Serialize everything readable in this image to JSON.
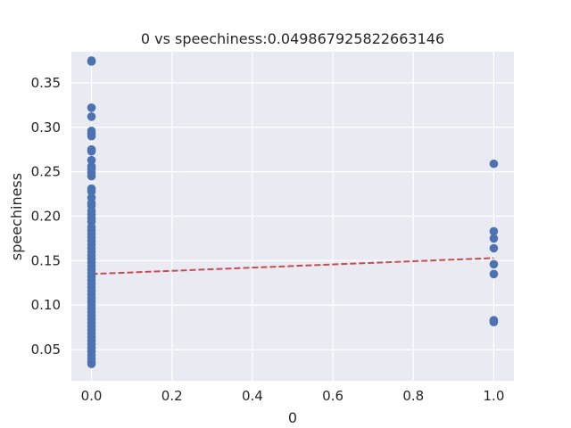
{
  "chart_data": {
    "type": "scatter",
    "title": "0 vs speechiness:0.049867925822663146",
    "xlabel": "0",
    "ylabel": "speechiness",
    "xlim": [
      -0.05,
      1.05
    ],
    "ylim": [
      0.015,
      0.385
    ],
    "x_ticks": [
      0.0,
      0.2,
      0.4,
      0.6,
      0.8,
      1.0
    ],
    "x_tick_labels": [
      "0.0",
      "0.2",
      "0.4",
      "0.6",
      "0.8",
      "1.0"
    ],
    "y_ticks": [
      0.05,
      0.1,
      0.15,
      0.2,
      0.25,
      0.3,
      0.35
    ],
    "y_tick_labels": [
      "0.05",
      "0.10",
      "0.15",
      "0.20",
      "0.25",
      "0.30",
      "0.35"
    ],
    "grid": true,
    "colors": {
      "background": "#eaeaf2",
      "grid": "#ffffff",
      "points": "#4c72b0",
      "trend": "#c44e52"
    },
    "series": [
      {
        "marker": "circle",
        "points": [
          [
            0,
            0.375
          ],
          [
            0,
            0.374
          ],
          [
            0,
            0.322
          ],
          [
            0,
            0.312
          ],
          [
            0,
            0.296
          ],
          [
            0,
            0.293
          ],
          [
            0,
            0.29
          ],
          [
            0,
            0.275
          ],
          [
            0,
            0.273
          ],
          [
            0,
            0.263
          ],
          [
            0,
            0.256
          ],
          [
            0,
            0.253
          ],
          [
            0,
            0.249
          ],
          [
            0,
            0.245
          ],
          [
            0,
            0.231
          ],
          [
            0,
            0.228
          ],
          [
            0,
            0.221
          ],
          [
            0,
            0.215
          ],
          [
            0,
            0.212
          ],
          [
            0,
            0.206
          ],
          [
            0,
            0.202
          ],
          [
            0,
            0.198
          ],
          [
            0,
            0.194
          ],
          [
            0,
            0.188
          ],
          [
            0,
            0.184
          ],
          [
            0,
            0.18
          ],
          [
            0,
            0.176
          ],
          [
            0,
            0.172
          ],
          [
            0,
            0.168
          ],
          [
            0,
            0.164
          ],
          [
            0,
            0.16
          ],
          [
            0,
            0.156
          ],
          [
            0,
            0.152
          ],
          [
            0,
            0.148
          ],
          [
            0,
            0.144
          ],
          [
            0,
            0.14
          ],
          [
            0,
            0.136
          ],
          [
            0,
            0.132
          ],
          [
            0,
            0.128
          ],
          [
            0,
            0.124
          ],
          [
            0,
            0.12
          ],
          [
            0,
            0.116
          ],
          [
            0,
            0.112
          ],
          [
            0,
            0.108
          ],
          [
            0,
            0.104
          ],
          [
            0,
            0.1
          ],
          [
            0,
            0.096
          ],
          [
            0,
            0.092
          ],
          [
            0,
            0.088
          ],
          [
            0,
            0.084
          ],
          [
            0,
            0.08
          ],
          [
            0,
            0.076
          ],
          [
            0,
            0.072
          ],
          [
            0,
            0.068
          ],
          [
            0,
            0.064
          ],
          [
            0,
            0.06
          ],
          [
            0,
            0.056
          ],
          [
            0,
            0.052
          ],
          [
            0,
            0.048
          ],
          [
            0,
            0.044
          ],
          [
            0,
            0.04
          ],
          [
            0,
            0.036
          ],
          [
            0,
            0.034
          ],
          [
            1,
            0.259
          ],
          [
            1,
            0.183
          ],
          [
            1,
            0.175
          ],
          [
            1,
            0.164
          ],
          [
            1,
            0.146
          ],
          [
            1,
            0.135
          ],
          [
            1,
            0.083
          ],
          [
            1,
            0.081
          ]
        ]
      }
    ],
    "trend_line": {
      "style": "dashed",
      "points": [
        [
          0,
          0.135
        ],
        [
          1,
          0.153
        ]
      ]
    }
  }
}
